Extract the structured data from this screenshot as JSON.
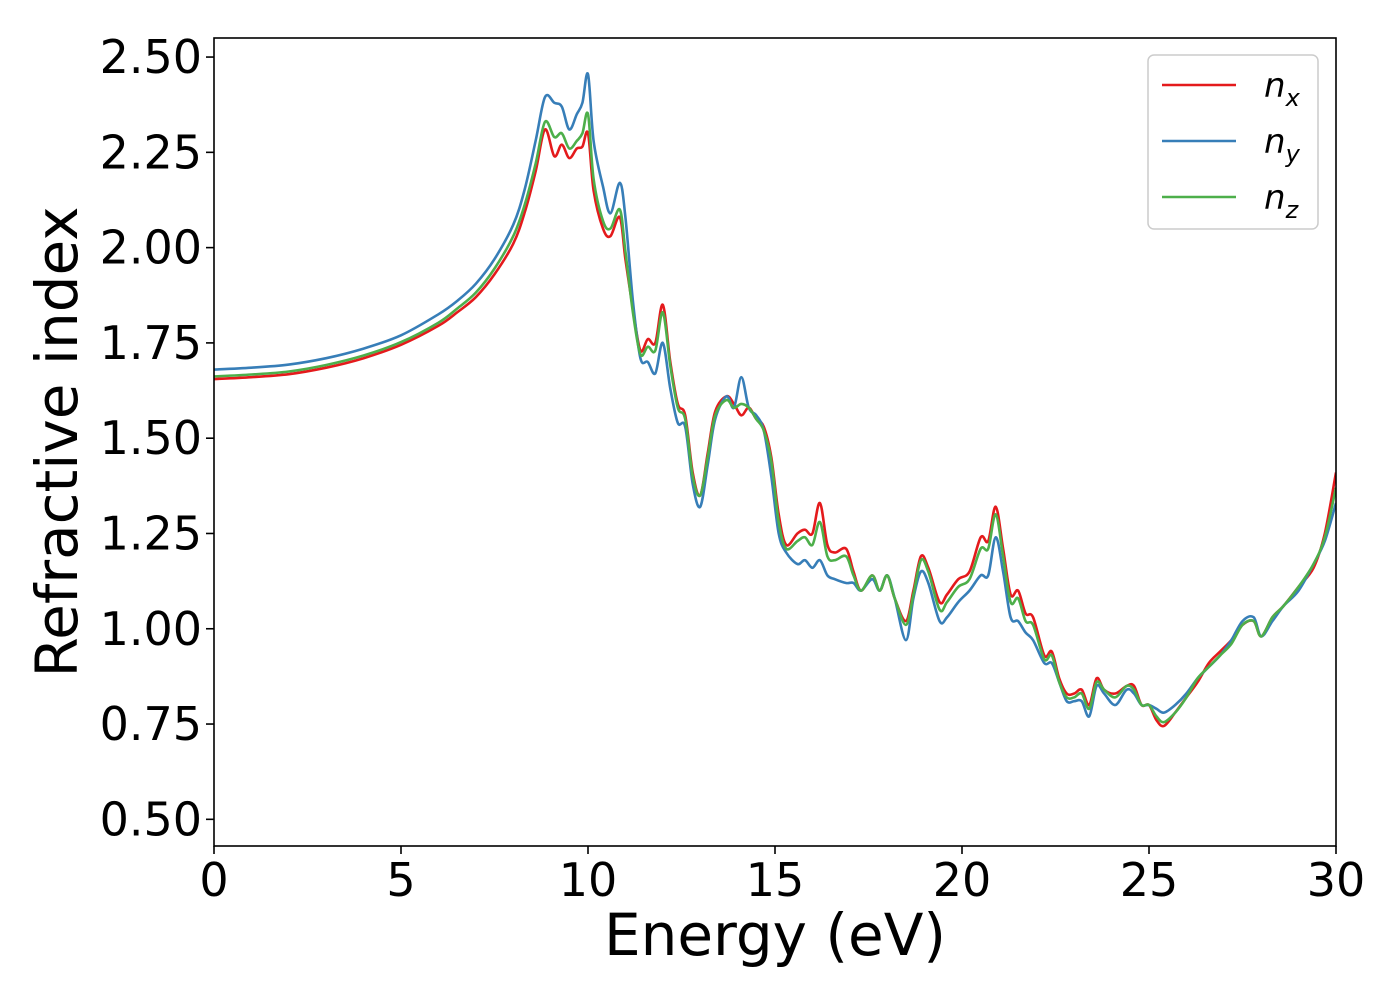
{
  "chart_data": {
    "type": "line",
    "title": "",
    "xlabel": "Energy (eV)",
    "ylabel": "Refractive index",
    "xlim": [
      0,
      30
    ],
    "ylim": [
      0.43,
      2.55
    ],
    "xticks": [
      "0",
      "5",
      "10",
      "15",
      "20",
      "25",
      "30"
    ],
    "yticks": [
      "0.50",
      "0.75",
      "1.00",
      "1.25",
      "1.50",
      "1.75",
      "2.00",
      "2.25",
      "2.50"
    ],
    "legend_position": "top-right",
    "series": [
      {
        "label_main": "n",
        "label_sub": "x",
        "color": "#e41a1c",
        "points": [
          [
            0,
            1.655
          ],
          [
            1,
            1.66
          ],
          [
            2,
            1.668
          ],
          [
            3,
            1.685
          ],
          [
            4,
            1.71
          ],
          [
            5,
            1.745
          ],
          [
            6,
            1.795
          ],
          [
            6.5,
            1.83
          ],
          [
            7,
            1.87
          ],
          [
            7.5,
            1.93
          ],
          [
            8,
            2.01
          ],
          [
            8.3,
            2.09
          ],
          [
            8.6,
            2.2
          ],
          [
            8.85,
            2.31
          ],
          [
            9.1,
            2.24
          ],
          [
            9.3,
            2.27
          ],
          [
            9.5,
            2.235
          ],
          [
            9.7,
            2.26
          ],
          [
            9.85,
            2.265
          ],
          [
            10.0,
            2.3
          ],
          [
            10.15,
            2.15
          ],
          [
            10.4,
            2.05
          ],
          [
            10.6,
            2.03
          ],
          [
            10.85,
            2.08
          ],
          [
            11.0,
            1.97
          ],
          [
            11.2,
            1.84
          ],
          [
            11.4,
            1.73
          ],
          [
            11.6,
            1.76
          ],
          [
            11.8,
            1.75
          ],
          [
            12.0,
            1.85
          ],
          [
            12.2,
            1.7
          ],
          [
            12.4,
            1.59
          ],
          [
            12.6,
            1.56
          ],
          [
            12.8,
            1.41
          ],
          [
            13.0,
            1.35
          ],
          [
            13.2,
            1.46
          ],
          [
            13.4,
            1.57
          ],
          [
            13.7,
            1.61
          ],
          [
            13.9,
            1.59
          ],
          [
            14.1,
            1.56
          ],
          [
            14.3,
            1.58
          ],
          [
            14.5,
            1.55
          ],
          [
            14.7,
            1.53
          ],
          [
            14.9,
            1.45
          ],
          [
            15.1,
            1.3
          ],
          [
            15.3,
            1.22
          ],
          [
            15.6,
            1.25
          ],
          [
            15.8,
            1.26
          ],
          [
            16.0,
            1.25
          ],
          [
            16.2,
            1.33
          ],
          [
            16.4,
            1.22
          ],
          [
            16.6,
            1.2
          ],
          [
            16.9,
            1.21
          ],
          [
            17.1,
            1.15
          ],
          [
            17.3,
            1.1
          ],
          [
            17.6,
            1.14
          ],
          [
            17.8,
            1.1
          ],
          [
            18.0,
            1.14
          ],
          [
            18.2,
            1.08
          ],
          [
            18.5,
            1.02
          ],
          [
            18.7,
            1.1
          ],
          [
            18.9,
            1.19
          ],
          [
            19.1,
            1.16
          ],
          [
            19.4,
            1.07
          ],
          [
            19.6,
            1.09
          ],
          [
            19.9,
            1.13
          ],
          [
            20.2,
            1.15
          ],
          [
            20.5,
            1.24
          ],
          [
            20.7,
            1.23
          ],
          [
            20.9,
            1.32
          ],
          [
            21.1,
            1.21
          ],
          [
            21.3,
            1.09
          ],
          [
            21.5,
            1.1
          ],
          [
            21.7,
            1.04
          ],
          [
            21.9,
            1.03
          ],
          [
            22.2,
            0.93
          ],
          [
            22.4,
            0.94
          ],
          [
            22.6,
            0.87
          ],
          [
            22.8,
            0.83
          ],
          [
            23.0,
            0.83
          ],
          [
            23.2,
            0.84
          ],
          [
            23.4,
            0.8
          ],
          [
            23.6,
            0.87
          ],
          [
            23.8,
            0.84
          ],
          [
            24.1,
            0.83
          ],
          [
            24.4,
            0.85
          ],
          [
            24.6,
            0.85
          ],
          [
            24.8,
            0.8
          ],
          [
            25.0,
            0.8
          ],
          [
            25.2,
            0.76
          ],
          [
            25.4,
            0.745
          ],
          [
            25.7,
            0.78
          ],
          [
            26.0,
            0.82
          ],
          [
            26.3,
            0.86
          ],
          [
            26.6,
            0.91
          ],
          [
            26.9,
            0.94
          ],
          [
            27.2,
            0.97
          ],
          [
            27.5,
            1.01
          ],
          [
            27.8,
            1.02
          ],
          [
            28.0,
            0.98
          ],
          [
            28.3,
            1.03
          ],
          [
            28.6,
            1.06
          ],
          [
            29.0,
            1.11
          ],
          [
            29.4,
            1.16
          ],
          [
            29.7,
            1.25
          ],
          [
            30.0,
            1.41
          ]
        ]
      },
      {
        "label_main": "n",
        "label_sub": "y",
        "color": "#377eb8",
        "points": [
          [
            0,
            1.68
          ],
          [
            1,
            1.685
          ],
          [
            2,
            1.693
          ],
          [
            3,
            1.71
          ],
          [
            4,
            1.735
          ],
          [
            5,
            1.77
          ],
          [
            6,
            1.825
          ],
          [
            6.5,
            1.86
          ],
          [
            7,
            1.905
          ],
          [
            7.5,
            1.97
          ],
          [
            8,
            2.06
          ],
          [
            8.3,
            2.15
          ],
          [
            8.6,
            2.28
          ],
          [
            8.85,
            2.395
          ],
          [
            9.1,
            2.38
          ],
          [
            9.3,
            2.37
          ],
          [
            9.5,
            2.31
          ],
          [
            9.7,
            2.35
          ],
          [
            9.85,
            2.38
          ],
          [
            10.0,
            2.455
          ],
          [
            10.15,
            2.28
          ],
          [
            10.4,
            2.16
          ],
          [
            10.6,
            2.09
          ],
          [
            10.85,
            2.17
          ],
          [
            11.0,
            2.08
          ],
          [
            11.2,
            1.86
          ],
          [
            11.4,
            1.71
          ],
          [
            11.6,
            1.7
          ],
          [
            11.8,
            1.67
          ],
          [
            12.0,
            1.75
          ],
          [
            12.2,
            1.63
          ],
          [
            12.4,
            1.54
          ],
          [
            12.6,
            1.53
          ],
          [
            12.8,
            1.38
          ],
          [
            13.0,
            1.32
          ],
          [
            13.2,
            1.43
          ],
          [
            13.4,
            1.55
          ],
          [
            13.7,
            1.61
          ],
          [
            13.9,
            1.58
          ],
          [
            14.1,
            1.66
          ],
          [
            14.3,
            1.58
          ],
          [
            14.5,
            1.56
          ],
          [
            14.7,
            1.52
          ],
          [
            14.9,
            1.4
          ],
          [
            15.1,
            1.25
          ],
          [
            15.3,
            1.2
          ],
          [
            15.6,
            1.17
          ],
          [
            15.8,
            1.18
          ],
          [
            16.0,
            1.16
          ],
          [
            16.2,
            1.18
          ],
          [
            16.4,
            1.14
          ],
          [
            16.6,
            1.13
          ],
          [
            16.9,
            1.12
          ],
          [
            17.1,
            1.12
          ],
          [
            17.3,
            1.1
          ],
          [
            17.6,
            1.13
          ],
          [
            17.8,
            1.1
          ],
          [
            18.0,
            1.14
          ],
          [
            18.2,
            1.08
          ],
          [
            18.5,
            0.97
          ],
          [
            18.7,
            1.08
          ],
          [
            18.9,
            1.15
          ],
          [
            19.1,
            1.12
          ],
          [
            19.4,
            1.02
          ],
          [
            19.6,
            1.03
          ],
          [
            19.9,
            1.07
          ],
          [
            20.2,
            1.1
          ],
          [
            20.5,
            1.14
          ],
          [
            20.7,
            1.14
          ],
          [
            20.9,
            1.24
          ],
          [
            21.1,
            1.15
          ],
          [
            21.3,
            1.03
          ],
          [
            21.5,
            1.02
          ],
          [
            21.7,
            0.99
          ],
          [
            21.9,
            0.97
          ],
          [
            22.2,
            0.91
          ],
          [
            22.4,
            0.91
          ],
          [
            22.6,
            0.86
          ],
          [
            22.8,
            0.81
          ],
          [
            23.0,
            0.81
          ],
          [
            23.2,
            0.81
          ],
          [
            23.4,
            0.77
          ],
          [
            23.6,
            0.85
          ],
          [
            23.8,
            0.83
          ],
          [
            24.1,
            0.8
          ],
          [
            24.4,
            0.84
          ],
          [
            24.6,
            0.83
          ],
          [
            24.8,
            0.8
          ],
          [
            25.0,
            0.8
          ],
          [
            25.2,
            0.79
          ],
          [
            25.4,
            0.78
          ],
          [
            25.7,
            0.8
          ],
          [
            26.0,
            0.83
          ],
          [
            26.3,
            0.87
          ],
          [
            26.6,
            0.9
          ],
          [
            26.9,
            0.93
          ],
          [
            27.2,
            0.97
          ],
          [
            27.5,
            1.02
          ],
          [
            27.8,
            1.03
          ],
          [
            28.0,
            0.98
          ],
          [
            28.3,
            1.02
          ],
          [
            28.6,
            1.06
          ],
          [
            29.0,
            1.1
          ],
          [
            29.4,
            1.17
          ],
          [
            29.7,
            1.23
          ],
          [
            30.0,
            1.33
          ]
        ]
      },
      {
        "label_main": "n",
        "label_sub": "z",
        "color": "#4daf4a",
        "points": [
          [
            0,
            1.662
          ],
          [
            1,
            1.667
          ],
          [
            2,
            1.675
          ],
          [
            3,
            1.692
          ],
          [
            4,
            1.717
          ],
          [
            5,
            1.752
          ],
          [
            6,
            1.803
          ],
          [
            6.5,
            1.84
          ],
          [
            7,
            1.882
          ],
          [
            7.5,
            1.945
          ],
          [
            8,
            2.03
          ],
          [
            8.3,
            2.11
          ],
          [
            8.6,
            2.22
          ],
          [
            8.85,
            2.33
          ],
          [
            9.1,
            2.29
          ],
          [
            9.3,
            2.3
          ],
          [
            9.5,
            2.26
          ],
          [
            9.7,
            2.28
          ],
          [
            9.85,
            2.3
          ],
          [
            10.0,
            2.35
          ],
          [
            10.15,
            2.18
          ],
          [
            10.4,
            2.07
          ],
          [
            10.6,
            2.05
          ],
          [
            10.85,
            2.1
          ],
          [
            11.0,
            1.99
          ],
          [
            11.2,
            1.83
          ],
          [
            11.4,
            1.72
          ],
          [
            11.6,
            1.74
          ],
          [
            11.8,
            1.73
          ],
          [
            12.0,
            1.83
          ],
          [
            12.2,
            1.69
          ],
          [
            12.4,
            1.58
          ],
          [
            12.6,
            1.55
          ],
          [
            12.8,
            1.4
          ],
          [
            13.0,
            1.35
          ],
          [
            13.2,
            1.45
          ],
          [
            13.4,
            1.56
          ],
          [
            13.7,
            1.6
          ],
          [
            13.9,
            1.58
          ],
          [
            14.1,
            1.59
          ],
          [
            14.3,
            1.58
          ],
          [
            14.5,
            1.55
          ],
          [
            14.7,
            1.52
          ],
          [
            14.9,
            1.44
          ],
          [
            15.1,
            1.28
          ],
          [
            15.3,
            1.21
          ],
          [
            15.6,
            1.23
          ],
          [
            15.8,
            1.24
          ],
          [
            16.0,
            1.22
          ],
          [
            16.2,
            1.28
          ],
          [
            16.4,
            1.19
          ],
          [
            16.6,
            1.18
          ],
          [
            16.9,
            1.19
          ],
          [
            17.1,
            1.14
          ],
          [
            17.3,
            1.1
          ],
          [
            17.6,
            1.14
          ],
          [
            17.8,
            1.1
          ],
          [
            18.0,
            1.14
          ],
          [
            18.2,
            1.08
          ],
          [
            18.5,
            1.01
          ],
          [
            18.7,
            1.09
          ],
          [
            18.9,
            1.18
          ],
          [
            19.1,
            1.15
          ],
          [
            19.4,
            1.05
          ],
          [
            19.6,
            1.07
          ],
          [
            19.9,
            1.11
          ],
          [
            20.2,
            1.13
          ],
          [
            20.5,
            1.21
          ],
          [
            20.7,
            1.21
          ],
          [
            20.9,
            1.3
          ],
          [
            21.1,
            1.19
          ],
          [
            21.3,
            1.07
          ],
          [
            21.5,
            1.08
          ],
          [
            21.7,
            1.02
          ],
          [
            21.9,
            1.01
          ],
          [
            22.2,
            0.92
          ],
          [
            22.4,
            0.93
          ],
          [
            22.6,
            0.86
          ],
          [
            22.8,
            0.82
          ],
          [
            23.0,
            0.82
          ],
          [
            23.2,
            0.83
          ],
          [
            23.4,
            0.79
          ],
          [
            23.6,
            0.86
          ],
          [
            23.8,
            0.84
          ],
          [
            24.1,
            0.82
          ],
          [
            24.4,
            0.85
          ],
          [
            24.6,
            0.84
          ],
          [
            24.8,
            0.8
          ],
          [
            25.0,
            0.8
          ],
          [
            25.2,
            0.77
          ],
          [
            25.4,
            0.755
          ],
          [
            25.7,
            0.78
          ],
          [
            26.0,
            0.82
          ],
          [
            26.3,
            0.87
          ],
          [
            26.6,
            0.9
          ],
          [
            26.9,
            0.93
          ],
          [
            27.2,
            0.96
          ],
          [
            27.5,
            1.01
          ],
          [
            27.8,
            1.02
          ],
          [
            28.0,
            0.98
          ],
          [
            28.3,
            1.03
          ],
          [
            28.6,
            1.06
          ],
          [
            29.0,
            1.11
          ],
          [
            29.4,
            1.17
          ],
          [
            29.7,
            1.24
          ],
          [
            30.0,
            1.37
          ]
        ]
      }
    ]
  }
}
